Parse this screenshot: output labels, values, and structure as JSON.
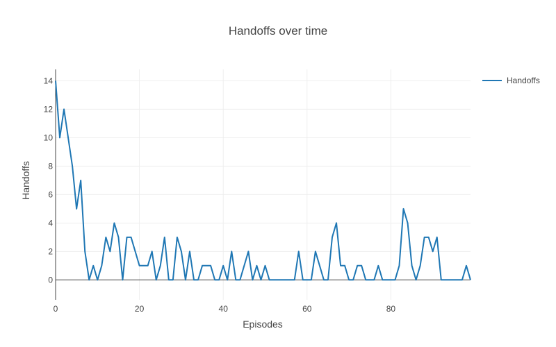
{
  "chart_data": {
    "type": "line",
    "title": "Handoffs over time",
    "xlabel": "Episodes",
    "ylabel": "Handoffs",
    "xlim": [
      0,
      99
    ],
    "ylim": [
      -1.4,
      14.8
    ],
    "xticks": [
      0,
      20,
      40,
      60,
      80
    ],
    "yticks": [
      0,
      2,
      4,
      6,
      8,
      10,
      12,
      14
    ],
    "grid": true,
    "legend_position": "top-right",
    "series": [
      {
        "name": "Handoffs",
        "color": "#1f77b4",
        "x": [
          0,
          1,
          2,
          3,
          4,
          5,
          6,
          7,
          8,
          9,
          10,
          11,
          12,
          13,
          14,
          15,
          16,
          17,
          18,
          19,
          20,
          21,
          22,
          23,
          24,
          25,
          26,
          27,
          28,
          29,
          30,
          31,
          32,
          33,
          34,
          35,
          36,
          37,
          38,
          39,
          40,
          41,
          42,
          43,
          44,
          45,
          46,
          47,
          48,
          49,
          50,
          51,
          52,
          53,
          54,
          55,
          56,
          57,
          58,
          59,
          60,
          61,
          62,
          63,
          64,
          65,
          66,
          67,
          68,
          69,
          70,
          71,
          72,
          73,
          74,
          75,
          76,
          77,
          78,
          79,
          80,
          81,
          82,
          83,
          84,
          85,
          86,
          87,
          88,
          89,
          90,
          91,
          92,
          93,
          94,
          95,
          96,
          97,
          98,
          99
        ],
        "values": [
          14,
          10,
          12,
          10,
          8,
          5,
          7,
          2,
          0,
          1,
          0,
          1,
          3,
          2,
          4,
          3,
          0,
          3,
          3,
          2,
          1,
          1,
          1,
          2,
          0,
          1,
          3,
          0,
          0,
          3,
          2,
          0,
          2,
          0,
          0,
          1,
          1,
          1,
          0,
          0,
          1,
          0,
          2,
          0,
          0,
          1,
          2,
          0,
          1,
          0,
          1,
          0,
          0,
          0,
          0,
          0,
          0,
          0,
          2,
          0,
          0,
          0,
          2,
          1,
          0,
          0,
          3,
          4,
          1,
          1,
          0,
          0,
          1,
          1,
          0,
          0,
          0,
          1,
          0,
          0,
          0,
          0,
          1,
          5,
          4,
          1,
          0,
          1,
          3,
          3,
          2,
          3,
          0,
          0,
          0,
          0,
          0,
          0,
          1,
          0
        ]
      }
    ]
  }
}
